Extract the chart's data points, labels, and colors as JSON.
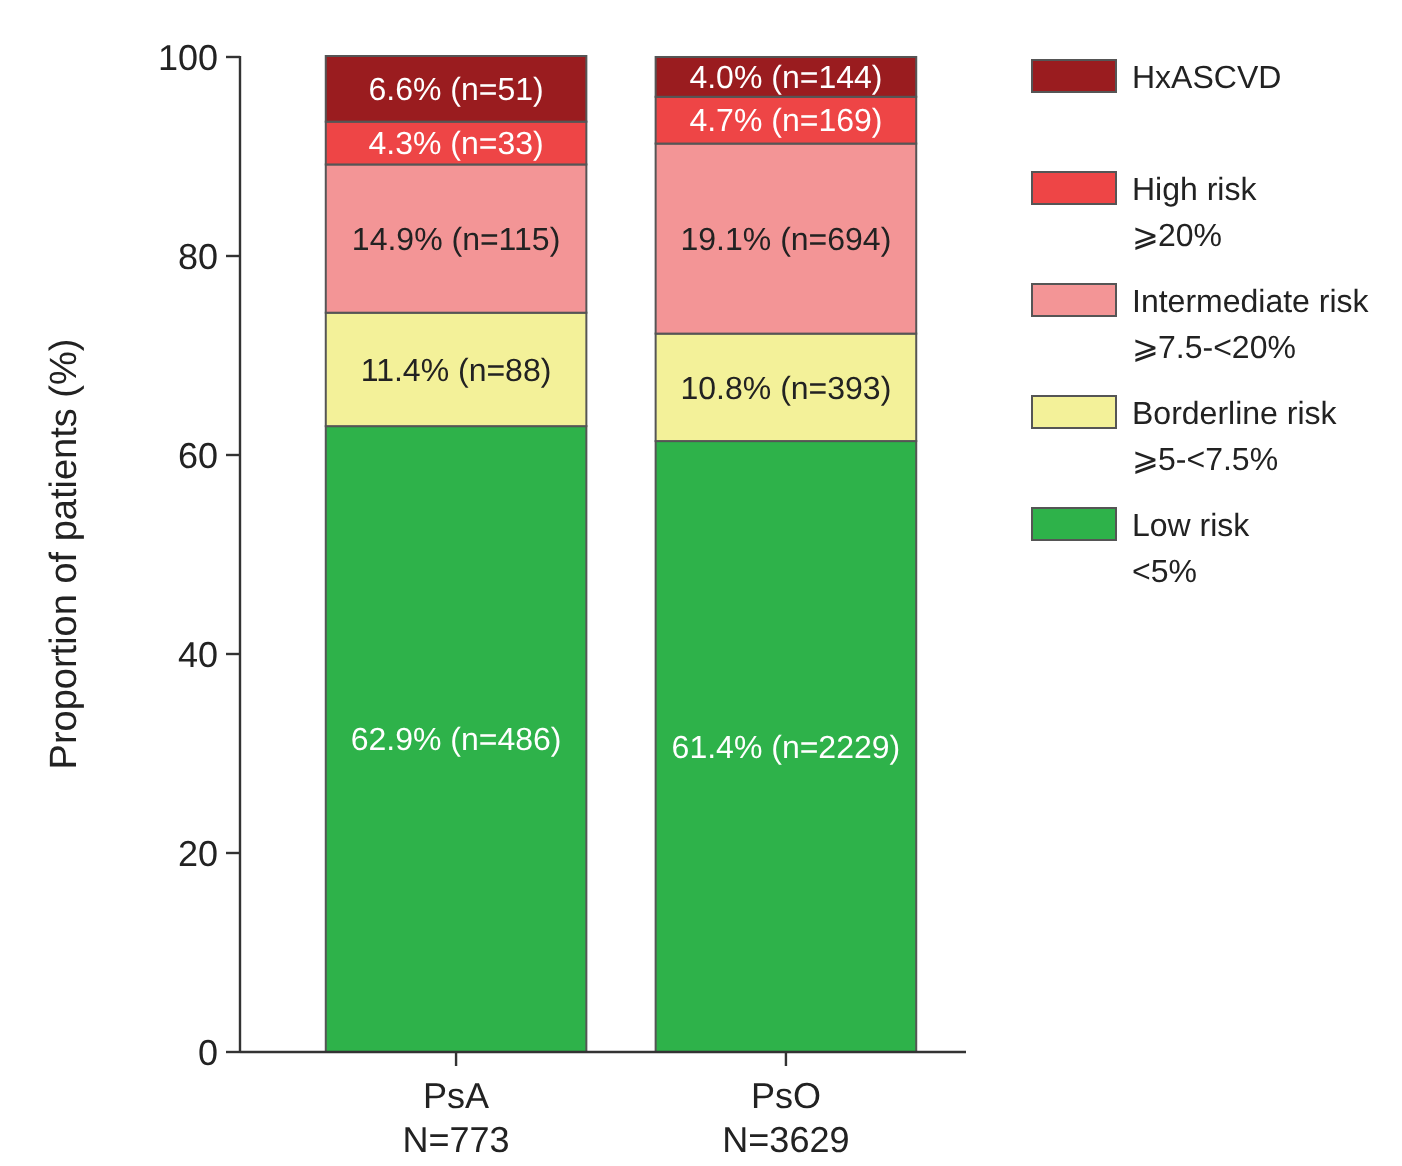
{
  "chart_data": {
    "type": "bar",
    "stacked": true,
    "ylabel": "Proportion of patients (%)",
    "categories": [
      "PsA\nN=773",
      "PsO\nN=3629"
    ],
    "ylim": [
      0,
      100.1
    ],
    "yticks": [
      0,
      20,
      40,
      60,
      80,
      100
    ],
    "legend": "right",
    "series": [
      {
        "name": "Low risk\n<5%",
        "color": "#2eb24a",
        "values": [
          62.9,
          61.4
        ],
        "value_labels": [
          "62.9% (n=486)",
          "61.4% (n=2229)"
        ]
      },
      {
        "name": "Borderline risk\n⩾5-<7.5%",
        "color": "#f3f199",
        "values": [
          11.4,
          10.8
        ],
        "value_labels": [
          "11.4% (n=88)",
          "10.8% (n=393)"
        ]
      },
      {
        "name": "Intermediate risk\n⩾7.5-<20%",
        "color": "#f39596",
        "values": [
          14.9,
          19.1
        ],
        "value_labels": [
          "14.9% (n=115)",
          "19.1% (n=694)"
        ]
      },
      {
        "name": "High risk\n⩾20%",
        "color": "#ee4546",
        "values": [
          4.3,
          4.7
        ],
        "value_labels": [
          "4.3% (n=33)",
          "4.7% (n=169)"
        ]
      },
      {
        "name": "HxASCVD",
        "color": "#9a1c1f",
        "values": [
          6.6,
          4.0
        ],
        "value_labels": [
          "6.6% (n=51)",
          "4.0% (n=144)"
        ]
      }
    ]
  }
}
